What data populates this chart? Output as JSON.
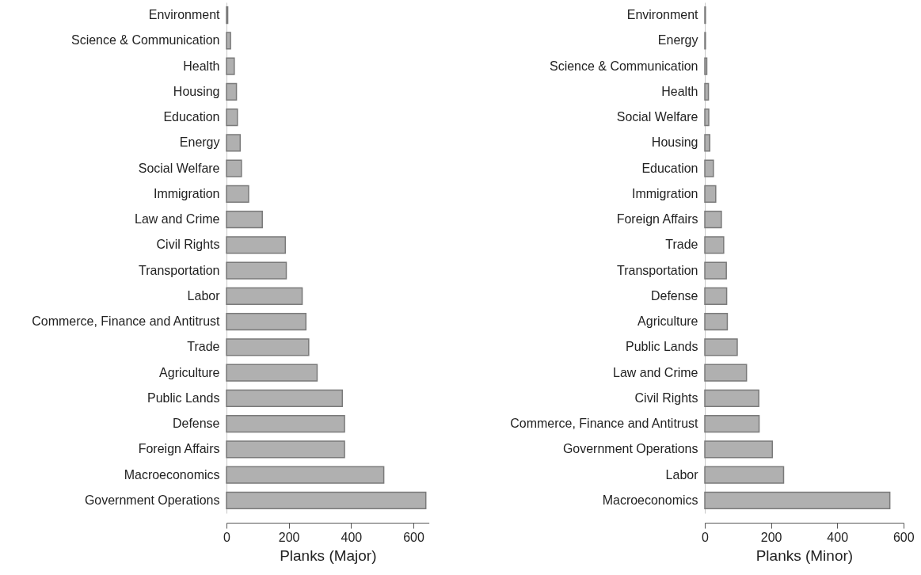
{
  "chart_data": [
    {
      "type": "bar",
      "orientation": "horizontal",
      "xlabel": "Planks (Major)",
      "color": "#b0b0b0",
      "xlim": [
        0,
        650
      ],
      "xticks": [
        0,
        200,
        400,
        600
      ],
      "categories": [
        "Environment",
        "Science & Communication",
        "Health",
        "Housing",
        "Education",
        "Energy",
        "Social Welfare",
        "Immigration",
        "Law and Crime",
        "Civil Rights",
        "Transportation",
        "Labor",
        "Commerce, Finance and Antitrust",
        "Trade",
        "Agriculture",
        "Public Lands",
        "Defense",
        "Foreign Affairs",
        "Macroeconomics",
        "Government Operations"
      ],
      "values": [
        4,
        13,
        25,
        32,
        35,
        44,
        48,
        71,
        115,
        189,
        192,
        243,
        255,
        264,
        291,
        372,
        379,
        379,
        505,
        640
      ]
    },
    {
      "type": "bar",
      "orientation": "horizontal",
      "xlabel": "Planks (Minor)",
      "color": "#b0b0b0",
      "xlim": [
        0,
        600
      ],
      "xticks": [
        0,
        200,
        400,
        600
      ],
      "categories": [
        "Environment",
        "Energy",
        "Science & Communication",
        "Health",
        "Social Welfare",
        "Housing",
        "Education",
        "Immigration",
        "Foreign Affairs",
        "Trade",
        "Transportation",
        "Defense",
        "Agriculture",
        "Public Lands",
        "Law and Crime",
        "Civil Rights",
        "Commerce, Finance and Antitrust",
        "Government Operations",
        "Labor",
        "Macroeconomics"
      ],
      "values": [
        2,
        2,
        6,
        11,
        12,
        15,
        26,
        33,
        50,
        57,
        65,
        66,
        68,
        98,
        126,
        163,
        164,
        204,
        238,
        559
      ]
    }
  ]
}
